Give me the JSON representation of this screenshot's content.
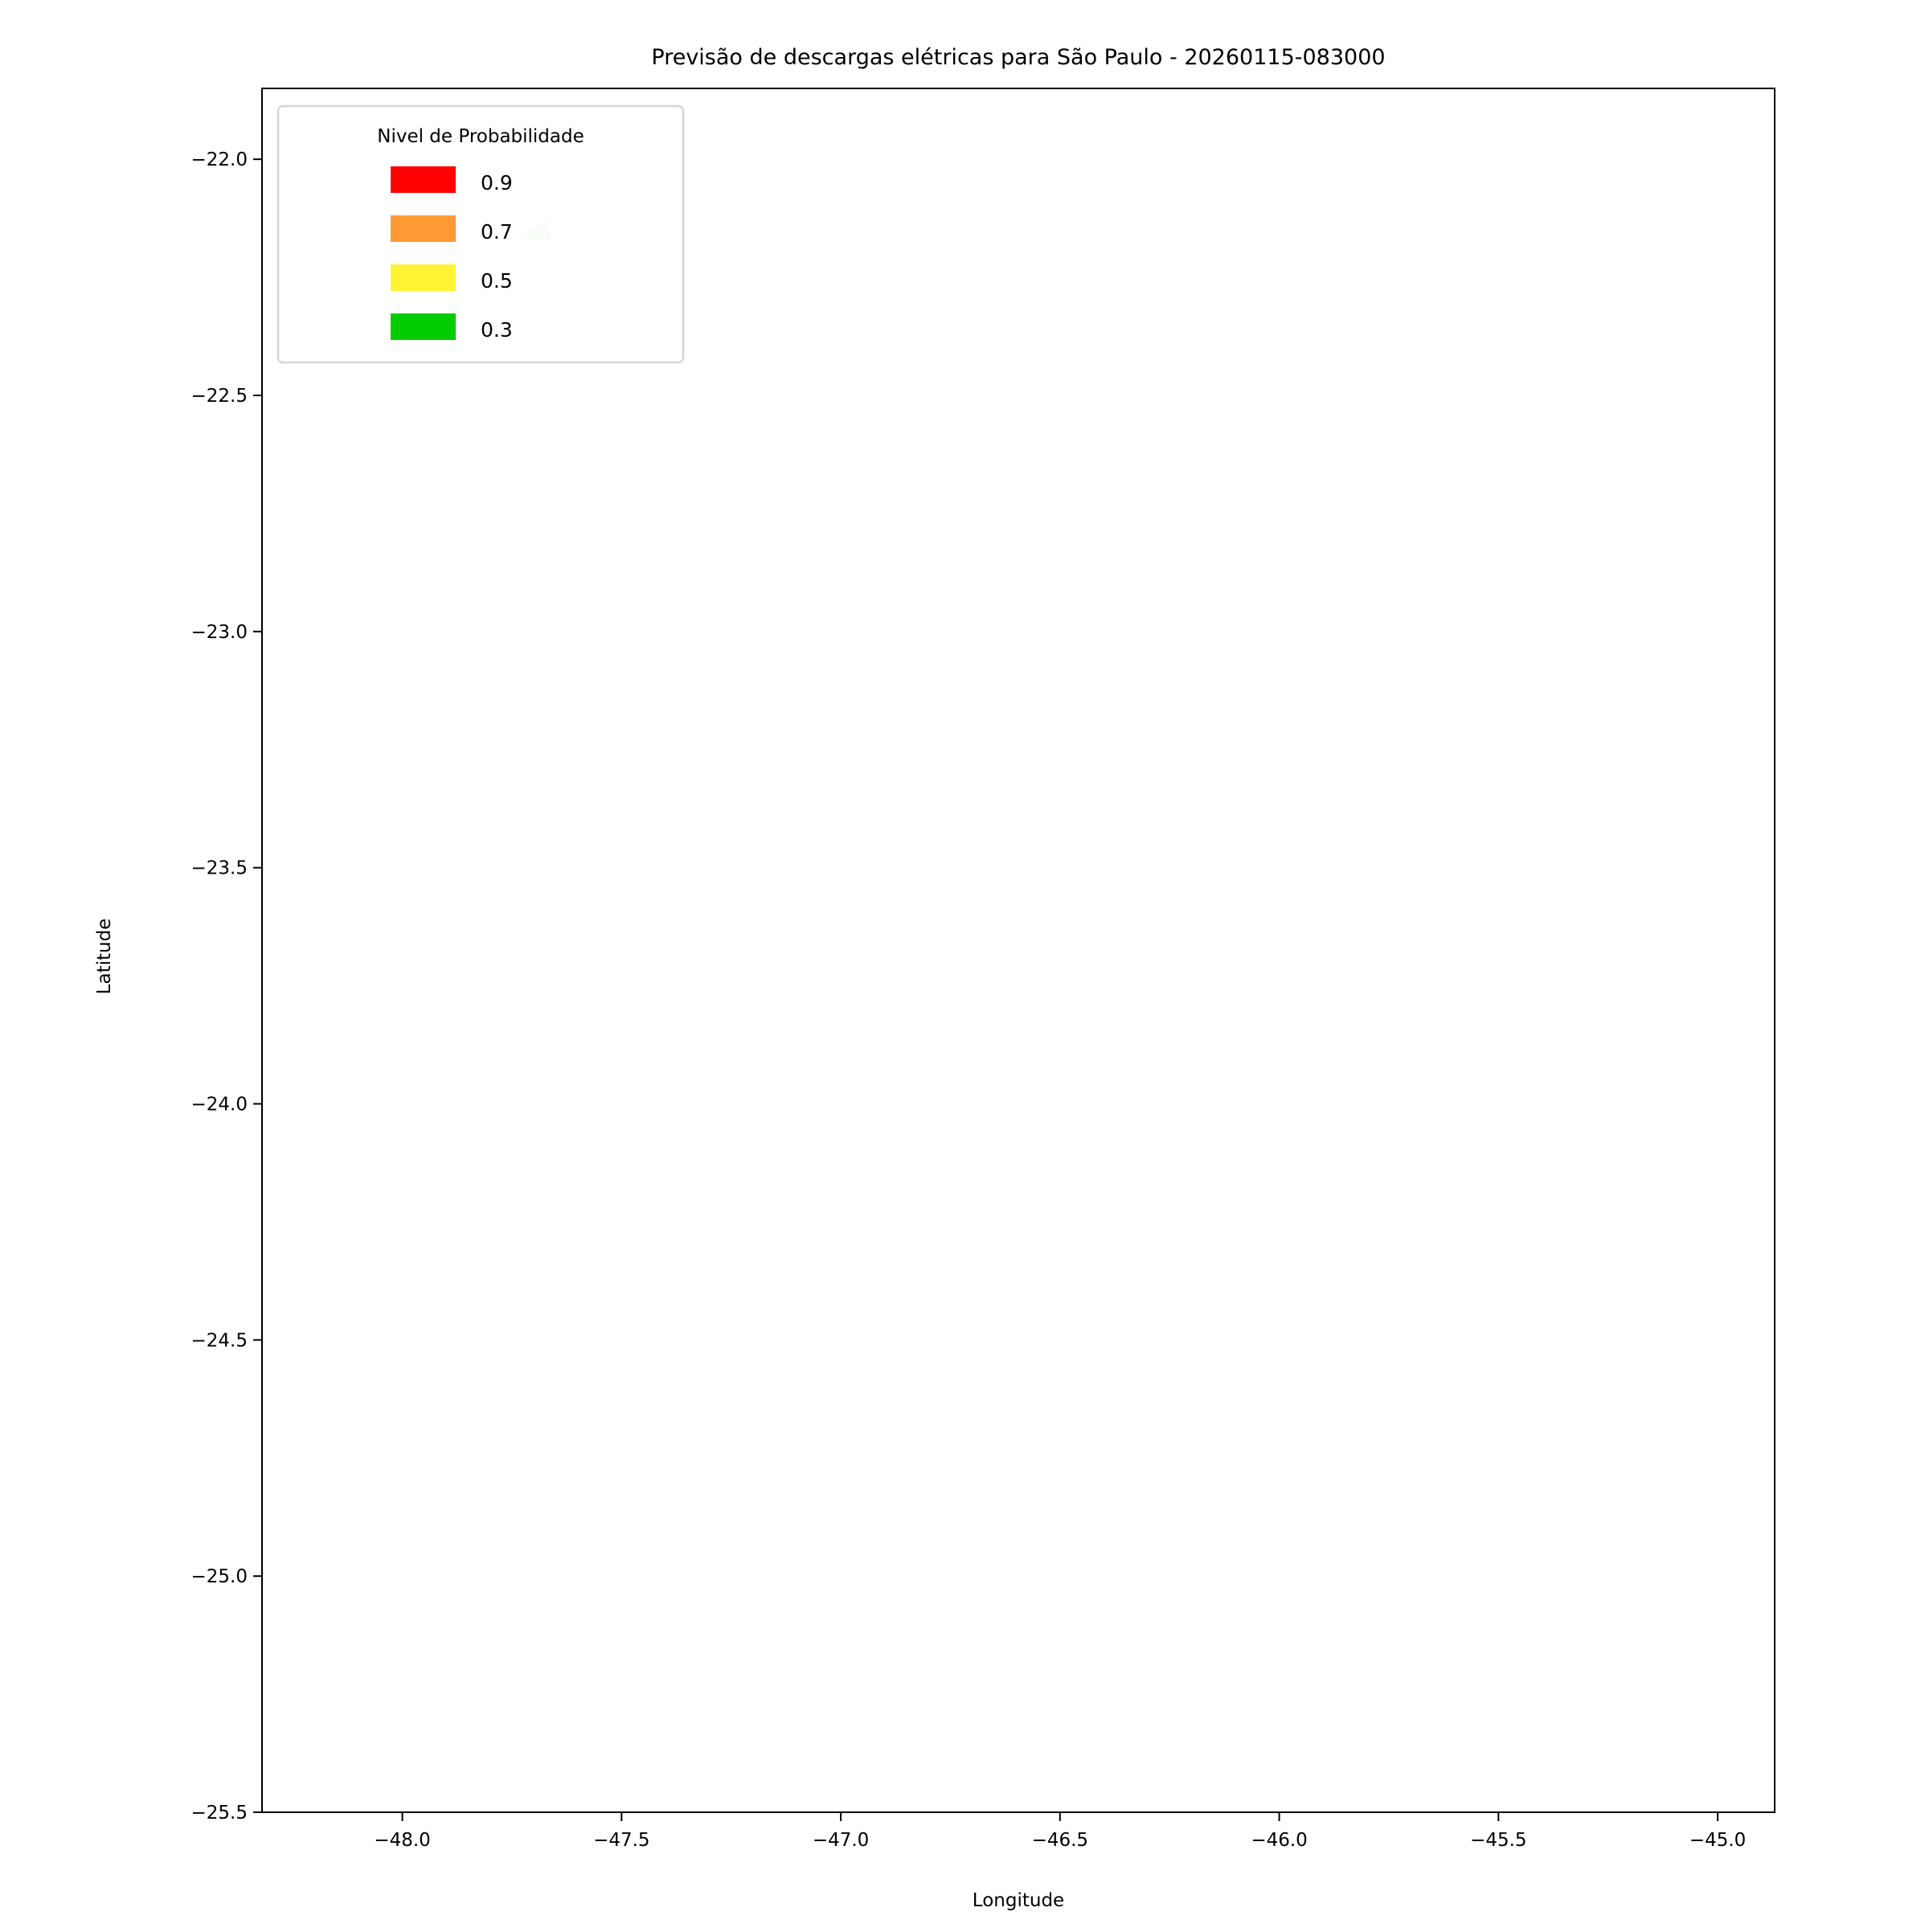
{
  "chart_data": {
    "type": "contour-map",
    "title": "Previsão de descargas elétricas para São Paulo - 20260115-083000",
    "xlabel": "Longitude",
    "ylabel": "Latitude",
    "xlim": [
      -48.32,
      -44.87
    ],
    "ylim": [
      -25.5,
      -21.85
    ],
    "xticks": [
      -48.0,
      -47.5,
      -47.0,
      -46.5,
      -46.0,
      -45.5,
      -45.0
    ],
    "xtick_labels": [
      "−48.0",
      "−47.5",
      "−47.0",
      "−46.5",
      "−46.0",
      "−45.5",
      "−45.0"
    ],
    "yticks": [
      -22.0,
      -22.5,
      -23.0,
      -23.5,
      -24.0,
      -24.5,
      -25.0,
      -25.5
    ],
    "ytick_labels": [
      "−22.0",
      "−22.5",
      "−23.0",
      "−23.5",
      "−24.0",
      "−24.5",
      "−25.0",
      "−25.5"
    ],
    "grid": false,
    "legend": {
      "title": "Nivel de Probabilidade",
      "placement": "upper-left",
      "entries": [
        {
          "label": "0.9",
          "color": "#ff0000"
        },
        {
          "label": "0.7",
          "color": "#ff9933"
        },
        {
          "label": "0.5",
          "color": "#fff333"
        },
        {
          "label": "0.3",
          "color": "#00cc00"
        }
      ]
    },
    "regions": [
      {
        "level": "0.3",
        "color": "#d4f5d4",
        "polygon": [
          [
            -47.74,
            -22.17
          ],
          [
            -47.67,
            -22.13
          ],
          [
            -47.66,
            -22.17
          ]
        ]
      }
    ]
  }
}
